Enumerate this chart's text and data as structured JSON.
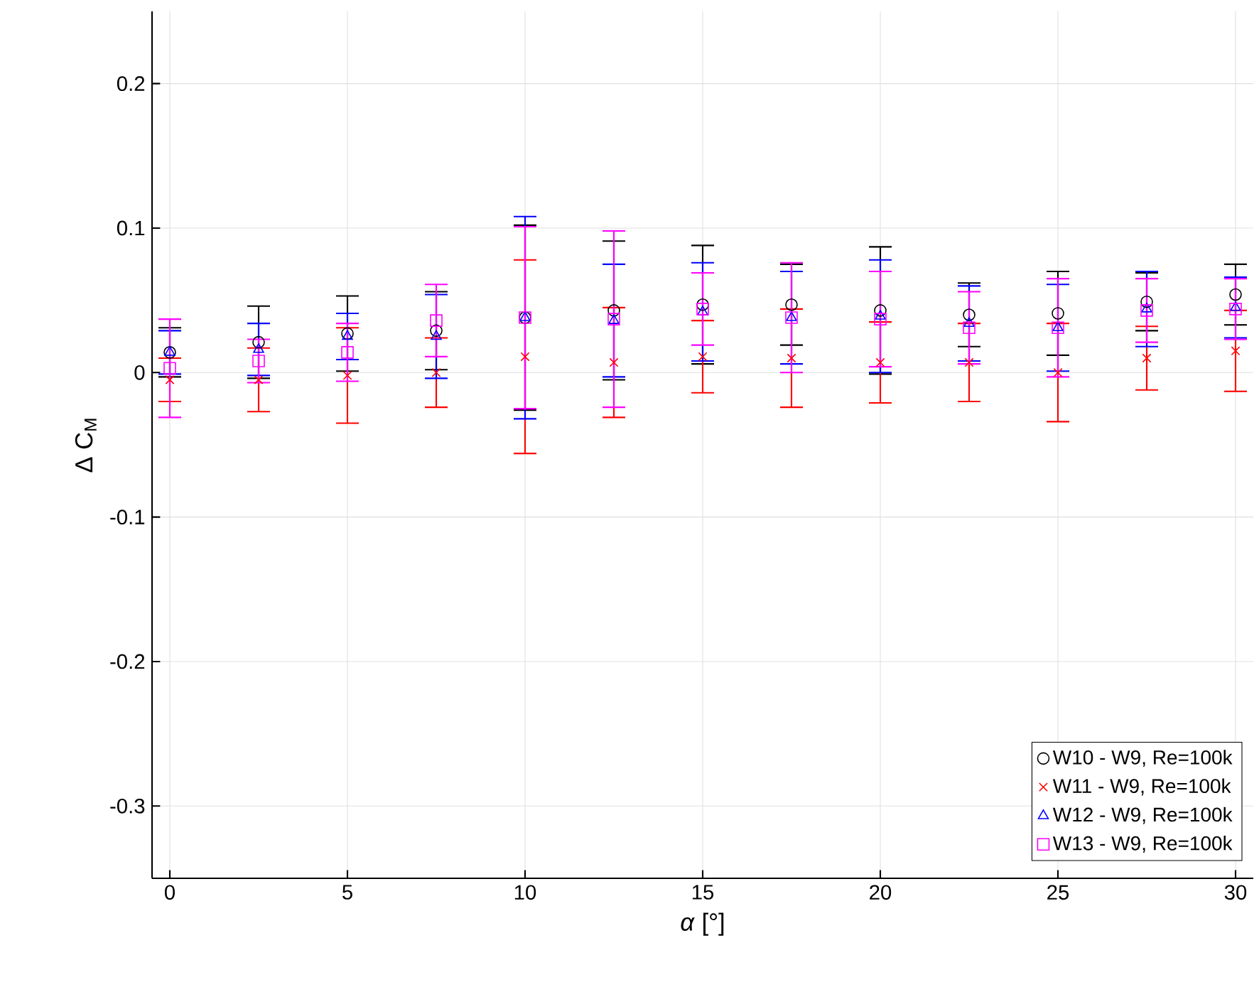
{
  "chart_data": {
    "type": "scatter",
    "xlabel": "*α* [°]",
    "ylabel": "Δ C$_{M}$",
    "x": [
      0,
      2.5,
      5,
      7.5,
      10,
      12.5,
      15,
      17.5,
      20,
      22.5,
      25,
      27.5,
      30
    ],
    "xlim": [
      -0.5,
      30.5
    ],
    "xticks": [
      0,
      5,
      10,
      15,
      20,
      25,
      30
    ],
    "ylim": [
      -0.35,
      0.25
    ],
    "yticks": [
      -0.3,
      -0.2,
      -0.1,
      0,
      0.1,
      0.2
    ],
    "grid": true,
    "legend": "bottom right",
    "series": [
      {
        "name": "W10 - W9, Re=100k",
        "color": "#000000",
        "marker": "circle",
        "values": [
          0.014,
          0.021,
          0.027,
          0.029,
          0.038,
          0.043,
          0.047,
          0.047,
          0.043,
          0.04,
          0.041,
          0.049,
          0.054
        ],
        "errors": [
          0.017,
          0.025,
          0.026,
          0.027,
          0.064,
          0.048,
          0.041,
          0.028,
          0.044,
          0.022,
          0.029,
          0.02,
          0.021
        ]
      },
      {
        "name": "W11 - W9, Re=100k",
        "color": "#ff0000",
        "marker": "cross",
        "values": [
          -0.005,
          -0.005,
          -0.002,
          0.0,
          0.011,
          0.007,
          0.011,
          0.01,
          0.007,
          0.007,
          0.0,
          0.01,
          0.015
        ],
        "errors": [
          0.015,
          0.022,
          0.033,
          0.024,
          0.067,
          0.038,
          0.025,
          0.034,
          0.028,
          0.027,
          0.034,
          0.022,
          0.028
        ]
      },
      {
        "name": "W12 - W9, Re=100k",
        "color": "#0000ff",
        "marker": "triangle",
        "values": [
          0.014,
          0.016,
          0.025,
          0.025,
          0.038,
          0.036,
          0.042,
          0.038,
          0.039,
          0.034,
          0.031,
          0.044,
          0.045
        ],
        "errors": [
          0.015,
          0.018,
          0.016,
          0.029,
          0.07,
          0.039,
          0.034,
          0.032,
          0.039,
          0.026,
          0.03,
          0.026,
          0.021
        ]
      },
      {
        "name": "W13 - W9, Re=100k",
        "color": "#ff00ff",
        "marker": "square",
        "values": [
          0.003,
          0.008,
          0.014,
          0.036,
          0.038,
          0.037,
          0.044,
          0.038,
          0.037,
          0.031,
          0.031,
          0.043,
          0.044
        ],
        "errors": [
          0.034,
          0.015,
          0.02,
          0.025,
          0.063,
          0.061,
          0.025,
          0.038,
          0.033,
          0.025,
          0.034,
          0.022,
          0.021
        ]
      }
    ]
  }
}
